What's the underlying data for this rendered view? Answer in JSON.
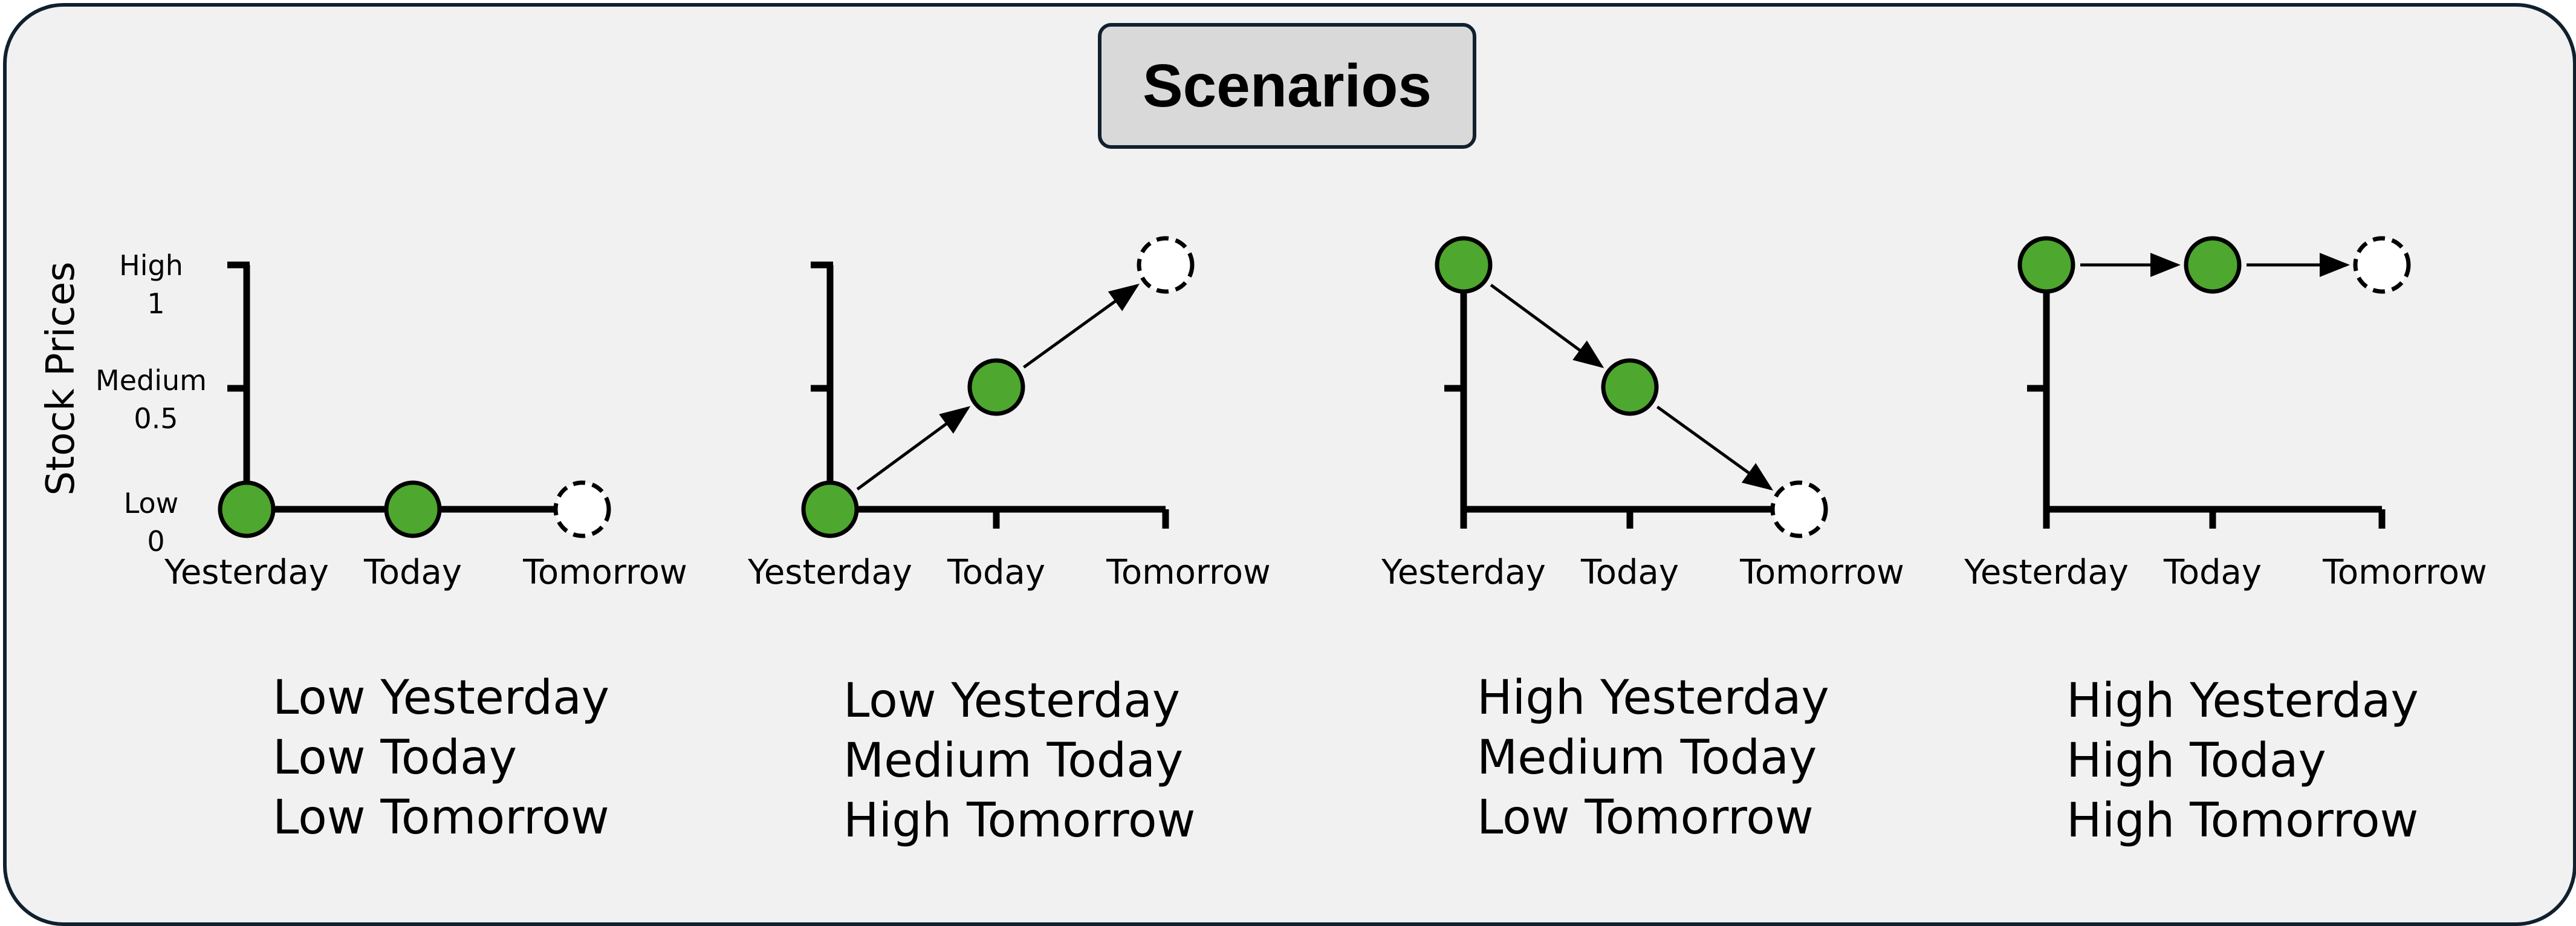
{
  "title": "Scenarios",
  "y_axis_label": "Stock Prices",
  "y_ticks": [
    {
      "level": 1,
      "name": "High",
      "value": "1"
    },
    {
      "level": 0.5,
      "name": "Medium",
      "value": "0.5"
    },
    {
      "level": 0,
      "name": "Low",
      "value": "0"
    }
  ],
  "x_labels": [
    "Yesterday",
    "Today",
    "Tomorrow"
  ],
  "colors": {
    "point_fill": "#4ea72e",
    "axis": "#000000",
    "frame_border": "#10202e",
    "background": "#f1f1f1",
    "title_box": "#d9d9d9"
  },
  "scenarios": [
    {
      "levels": [
        0,
        0,
        0
      ],
      "description": [
        "Low Yesterday",
        "Low Today",
        "Low Tomorrow"
      ]
    },
    {
      "levels": [
        0,
        0.5,
        1
      ],
      "description": [
        "Low Yesterday",
        "Medium Today",
        "High Tomorrow"
      ]
    },
    {
      "levels": [
        1,
        0.5,
        0
      ],
      "description": [
        "High Yesterday",
        "Medium Today",
        "Low Tomorrow"
      ]
    },
    {
      "levels": [
        1,
        1,
        1
      ],
      "description": [
        "High Yesterday",
        "High Today",
        "High Tomorrow"
      ]
    }
  ]
}
